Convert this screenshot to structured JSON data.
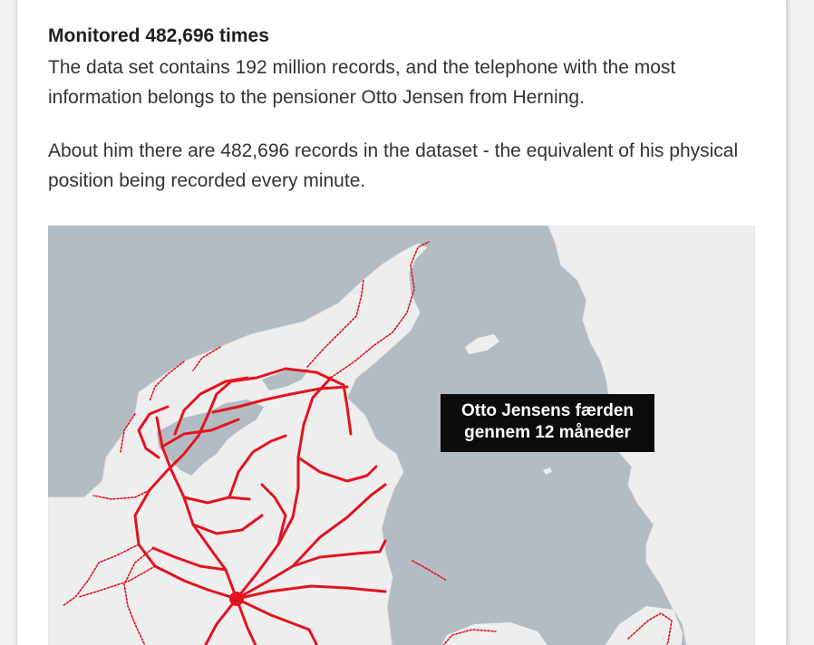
{
  "article": {
    "heading": "Monitored 482,696 times",
    "paragraphs": [
      "The data set contains 192 million records, and the telephone with the most information belongs to the pensioner Otto Jensen from Herning.",
      "About him there are 482,696 records in the dataset - the equivalent of his physical position being recorded every minute."
    ]
  },
  "map": {
    "label_line1": "Otto Jensens færden",
    "label_line2": "gennem 12 måneder",
    "colors": {
      "water": "#b3bcc3",
      "land": "#eeeeee",
      "track": "#e3131f",
      "label_bg": "#0c0c0c",
      "label_text": "#ffffff"
    }
  }
}
